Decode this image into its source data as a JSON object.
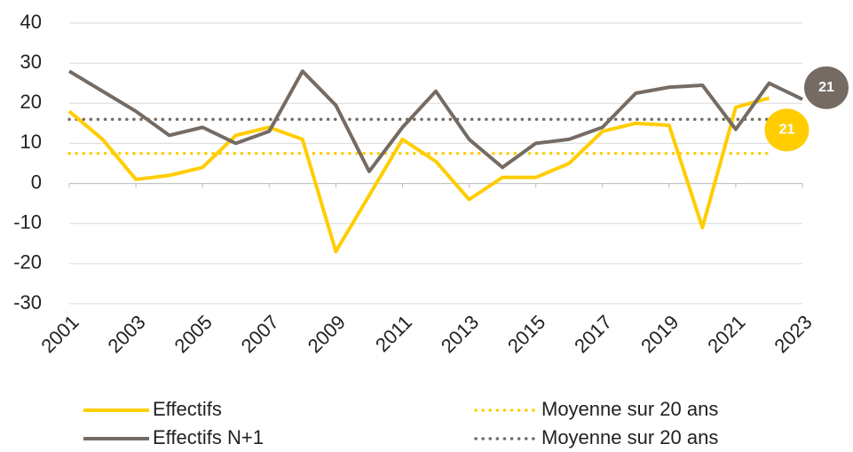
{
  "chart_data": {
    "type": "line",
    "x": [
      2001,
      2002,
      2003,
      2004,
      2005,
      2006,
      2007,
      2008,
      2009,
      2010,
      2011,
      2012,
      2013,
      2014,
      2015,
      2016,
      2017,
      2018,
      2019,
      2020,
      2021,
      2022,
      2023
    ],
    "xlim": [
      2001,
      2023
    ],
    "xticks": [
      2001,
      2003,
      2005,
      2007,
      2009,
      2011,
      2013,
      2015,
      2017,
      2019,
      2021,
      2023
    ],
    "ylim": [
      -30,
      40
    ],
    "yticks": [
      -30,
      -20,
      -10,
      0,
      10,
      20,
      30,
      40
    ],
    "grid": true,
    "legend": "bottom",
    "series": [
      {
        "name": "Effectifs",
        "color": "#ffcd00",
        "values": [
          18,
          11,
          1,
          2,
          4,
          12,
          14,
          11,
          -17,
          -3,
          11,
          5.5,
          -4,
          1.5,
          1.5,
          5,
          13,
          15,
          14.5,
          -11,
          19,
          21.3,
          null
        ],
        "value_labels": [
          null,
          null,
          null,
          null,
          null,
          null,
          null,
          null,
          null,
          null,
          null,
          null,
          null,
          null,
          null,
          null,
          null,
          null,
          null,
          null,
          null,
          "21",
          null
        ]
      },
      {
        "name": "Effectifs N+1",
        "color": "#756b63",
        "values": [
          28,
          23,
          18,
          12,
          14,
          10,
          13,
          28,
          19.5,
          3,
          14,
          23,
          11,
          4,
          10,
          11,
          14,
          22.5,
          24,
          24.5,
          13.5,
          25,
          21
        ],
        "value_labels": [
          null,
          null,
          null,
          null,
          null,
          null,
          null,
          null,
          null,
          null,
          null,
          null,
          null,
          null,
          null,
          null,
          null,
          null,
          null,
          null,
          null,
          null,
          "21"
        ]
      }
    ],
    "reference_lines": [
      {
        "name": "Moyenne sur 20 ans",
        "color": "#ffcd00",
        "value": 7.5
      },
      {
        "name": "Moyenne sur 20 ans",
        "color": "#756b63",
        "value": 16
      }
    ]
  }
}
